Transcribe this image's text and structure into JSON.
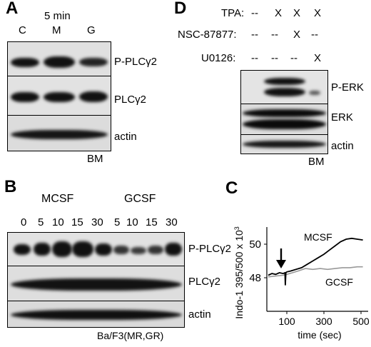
{
  "panelA": {
    "letter": "A",
    "timepoint": "5 min",
    "lanes": [
      "C",
      "M",
      "G"
    ],
    "rows": [
      "P-PLCγ2",
      "PLCγ2",
      "actin"
    ],
    "cell": "BM"
  },
  "panelB": {
    "letter": "B",
    "group1": "MCSF",
    "group2": "GCSF",
    "lanes": [
      "0",
      "5",
      "10",
      "15",
      "30",
      "5",
      "10",
      "15",
      "30"
    ],
    "rows": [
      "P-PLCγ2",
      "PLCγ2",
      "actin"
    ],
    "cell": "Ba/F3(MR,GR)"
  },
  "panelC": {
    "letter": "C",
    "ylabel": "Indo-1 395/500 x 10",
    "ylabel_sup": "3",
    "xlabel": "time (sec)",
    "yticks": [
      "50",
      "48"
    ],
    "xticks": [
      "100",
      "300",
      "500"
    ]
  },
  "chart_data": {
    "type": "line",
    "xlabel": "time (sec)",
    "ylabel": "Indo-1 395/500 x 10^3",
    "xlim": [
      0,
      520
    ],
    "ylim": [
      47.2,
      50.9
    ],
    "series": [
      {
        "name": "MCSF",
        "color": "#000000",
        "x": [
          0,
          20,
          40,
          60,
          80,
          90,
          92,
          95,
          100,
          120,
          150,
          180,
          210,
          240,
          270,
          300,
          330,
          360,
          390,
          420,
          450,
          480,
          510
        ],
        "y": [
          48.15,
          48.25,
          48.2,
          48.3,
          48.25,
          48.3,
          47.55,
          48.3,
          48.35,
          48.4,
          48.5,
          48.6,
          48.8,
          49.0,
          49.2,
          49.4,
          49.65,
          49.9,
          50.15,
          50.3,
          50.35,
          50.3,
          50.25
        ]
      },
      {
        "name": "GCSF",
        "color": "#999999",
        "x": [
          0,
          40,
          80,
          100,
          130,
          160,
          200,
          240,
          280,
          320,
          360,
          400,
          440,
          480,
          510
        ],
        "y": [
          48.05,
          48.1,
          48.15,
          48.2,
          48.3,
          48.4,
          48.55,
          48.5,
          48.55,
          48.5,
          48.55,
          48.6,
          48.6,
          48.65,
          48.65
        ]
      }
    ],
    "annotations": [
      "MCSF",
      "GCSF"
    ]
  },
  "panelD": {
    "letter": "D",
    "treatments": [
      {
        "label": "TPA:",
        "marks": [
          "--",
          "X",
          "X",
          "X"
        ]
      },
      {
        "label": "NSC-87877:",
        "marks": [
          "--",
          "--",
          "X",
          "--"
        ]
      },
      {
        "label": "U0126:",
        "marks": [
          "--",
          "--",
          "--",
          "X"
        ]
      }
    ],
    "rows": [
      "P-ERK",
      "ERK",
      "actin"
    ],
    "cell": "BM"
  }
}
